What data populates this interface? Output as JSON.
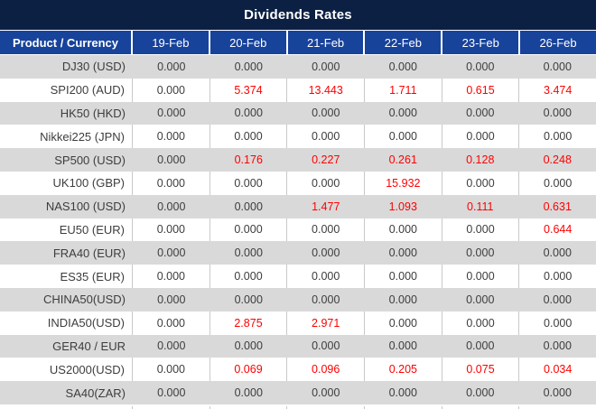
{
  "title": "Dividends Rates",
  "colors": {
    "title_bar_bg": "#0c2044",
    "header_bg": "#18439a",
    "alt_row_bg": "#d9d9d9",
    "value_text": "#3d3d3d",
    "nonzero_value_text": "#ff0000"
  },
  "table": {
    "product_header": "Product / Currency",
    "date_headers": [
      "19-Feb",
      "20-Feb",
      "21-Feb",
      "22-Feb",
      "23-Feb",
      "26-Feb"
    ],
    "rows": [
      {
        "product": "DJ30 (USD)",
        "values": [
          "0.000",
          "0.000",
          "0.000",
          "0.000",
          "0.000",
          "0.000"
        ]
      },
      {
        "product": "SPI200 (AUD)",
        "values": [
          "0.000",
          "5.374",
          "13.443",
          "1.711",
          "0.615",
          "3.474"
        ]
      },
      {
        "product": "HK50 (HKD)",
        "values": [
          "0.000",
          "0.000",
          "0.000",
          "0.000",
          "0.000",
          "0.000"
        ]
      },
      {
        "product": "Nikkei225 (JPN)",
        "values": [
          "0.000",
          "0.000",
          "0.000",
          "0.000",
          "0.000",
          "0.000"
        ]
      },
      {
        "product": "SP500 (USD)",
        "values": [
          "0.000",
          "0.176",
          "0.227",
          "0.261",
          "0.128",
          "0.248"
        ]
      },
      {
        "product": "UK100 (GBP)",
        "values": [
          "0.000",
          "0.000",
          "0.000",
          "15.932",
          "0.000",
          "0.000"
        ]
      },
      {
        "product": "NAS100 (USD)",
        "values": [
          "0.000",
          "0.000",
          "1.477",
          "1.093",
          "0.111",
          "0.631"
        ]
      },
      {
        "product": "EU50 (EUR)",
        "values": [
          "0.000",
          "0.000",
          "0.000",
          "0.000",
          "0.000",
          "0.644"
        ]
      },
      {
        "product": "FRA40 (EUR)",
        "values": [
          "0.000",
          "0.000",
          "0.000",
          "0.000",
          "0.000",
          "0.000"
        ]
      },
      {
        "product": "ES35 (EUR)",
        "values": [
          "0.000",
          "0.000",
          "0.000",
          "0.000",
          "0.000",
          "0.000"
        ]
      },
      {
        "product": "CHINA50(USD)",
        "values": [
          "0.000",
          "0.000",
          "0.000",
          "0.000",
          "0.000",
          "0.000"
        ]
      },
      {
        "product": "INDIA50(USD)",
        "values": [
          "0.000",
          "2.875",
          "2.971",
          "0.000",
          "0.000",
          "0.000"
        ]
      },
      {
        "product": "GER40 / EUR",
        "values": [
          "0.000",
          "0.000",
          "0.000",
          "0.000",
          "0.000",
          "0.000"
        ]
      },
      {
        "product": "US2000(USD)",
        "values": [
          "0.000",
          "0.069",
          "0.096",
          "0.205",
          "0.075",
          "0.034"
        ]
      },
      {
        "product": "SA40(ZAR)",
        "values": [
          "0.000",
          "0.000",
          "0.000",
          "0.000",
          "0.000",
          "0.000"
        ]
      }
    ]
  }
}
